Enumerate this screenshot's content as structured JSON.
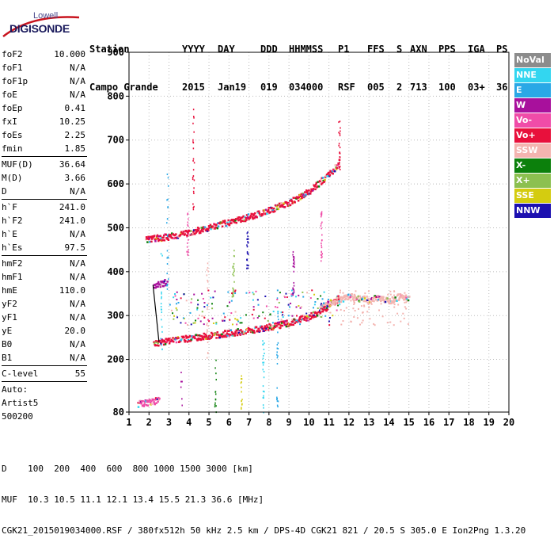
{
  "logo": {
    "top": "Lowell",
    "main": "DIGISONDE"
  },
  "header": {
    "labels": {
      "station": "Station",
      "yyyy": "YYYY",
      "day": "DAY",
      "ddd": "DDD",
      "hhmmss": "HHMMSS",
      "p1": "P1",
      "ffs": "FFS",
      "s": "S",
      "axn": "AXN",
      "pps": "PPS",
      "iga": "IGA",
      "ps": "PS"
    },
    "values": {
      "station": "Campo Grande",
      "yyyy": "2015",
      "day": "Jan19",
      "ddd": "019",
      "hhmmss": "034000",
      "p1": "RSF",
      "ffs": "005",
      "s": "2",
      "axn": "713",
      "pps": "100",
      "iga": "03+",
      "ps": "36"
    }
  },
  "params": {
    "group1": [
      {
        "k": "foF2",
        "v": "10.000"
      },
      {
        "k": "foF1",
        "v": "N/A"
      },
      {
        "k": "foF1p",
        "v": "N/A"
      },
      {
        "k": "foE",
        "v": "N/A"
      },
      {
        "k": "foEp",
        "v": "0.41"
      },
      {
        "k": "fxI",
        "v": "10.25"
      },
      {
        "k": "foEs",
        "v": "2.25"
      },
      {
        "k": "fmin",
        "v": "1.85"
      }
    ],
    "group2": [
      {
        "k": "MUF(D)",
        "v": "36.64"
      },
      {
        "k": "M(D)",
        "v": "3.66"
      },
      {
        "k": "D",
        "v": "N/A"
      }
    ],
    "group3": [
      {
        "k": "h`F",
        "v": "241.0"
      },
      {
        "k": "h`F2",
        "v": "241.0"
      },
      {
        "k": "h`E",
        "v": "N/A"
      },
      {
        "k": "h`Es",
        "v": "97.5"
      }
    ],
    "group4": [
      {
        "k": "hmF2",
        "v": "N/A"
      },
      {
        "k": "hmF1",
        "v": "N/A"
      },
      {
        "k": "hmE",
        "v": "110.0"
      },
      {
        "k": "yF2",
        "v": "N/A"
      },
      {
        "k": "yF1",
        "v": "N/A"
      },
      {
        "k": "yE",
        "v": "20.0"
      },
      {
        "k": "B0",
        "v": "N/A"
      },
      {
        "k": "B1",
        "v": "N/A"
      }
    ],
    "group5": [
      {
        "k": "C-level",
        "v": "55"
      }
    ],
    "auto": [
      "Auto:",
      "Artist5",
      "500200"
    ]
  },
  "legend": [
    {
      "label": "NoVal",
      "color": "#8c8c8c"
    },
    {
      "label": "NNE",
      "color": "#33d6f0"
    },
    {
      "label": "E",
      "color": "#2aa8e6"
    },
    {
      "label": "W",
      "color": "#a8109c"
    },
    {
      "label": "Vo-",
      "color": "#f04ca8"
    },
    {
      "label": "Vo+",
      "color": "#e8103c"
    },
    {
      "label": "SSW",
      "color": "#f4b4b0"
    },
    {
      "label": "X-",
      "color": "#0c800c"
    },
    {
      "label": "X+",
      "color": "#8cc050"
    },
    {
      "label": "SSE",
      "color": "#d4cc10"
    },
    {
      "label": "NNW",
      "color": "#1c10b0"
    }
  ],
  "footer": {
    "line1": "D    100  200  400  600  800 1000 1500 3000 [km]",
    "line2": "MUF  10.3 10.5 11.1 12.1 13.4 15.5 21.3 36.6 [MHz]",
    "line3": "CGK21_2015019034000.RSF / 380fx512h 50 kHz 2.5 km / DPS-4D CGK21 821 / 20.5 S 305.0 E Ion2Png 1.3.20"
  },
  "chart_data": {
    "type": "scatter",
    "xlim": [
      1,
      20
    ],
    "ylim": [
      80,
      900
    ],
    "xticks": [
      1,
      2,
      3,
      4,
      5,
      6,
      7,
      8,
      9,
      10,
      11,
      12,
      13,
      14,
      15,
      16,
      17,
      18,
      19,
      20
    ],
    "yticks": [
      80,
      200,
      300,
      400,
      500,
      600,
      700,
      800,
      900
    ],
    "xlabel": "",
    "ylabel": "",
    "grid": "dotted",
    "traces": [
      {
        "name": "F2 trace",
        "color": "#e8103c",
        "points": [
          [
            2.2,
            238
          ],
          [
            3,
            245
          ],
          [
            4,
            250
          ],
          [
            5,
            256
          ],
          [
            6,
            262
          ],
          [
            7,
            268
          ],
          [
            8,
            276
          ],
          [
            9,
            285
          ],
          [
            10,
            300
          ],
          [
            10.5,
            310
          ],
          [
            11,
            325
          ],
          [
            11.3,
            335
          ],
          [
            11.5,
            345
          ]
        ]
      },
      {
        "name": "F2 second-hop",
        "color": "#e8103c",
        "points": [
          [
            1.8,
            475
          ],
          [
            3,
            482
          ],
          [
            4,
            492
          ],
          [
            5,
            502
          ],
          [
            6,
            515
          ],
          [
            7,
            527
          ],
          [
            8,
            542
          ],
          [
            9,
            560
          ],
          [
            10,
            585
          ],
          [
            10.5,
            605
          ],
          [
            11,
            625
          ],
          [
            11.3,
            640
          ],
          [
            11.5,
            655
          ]
        ]
      },
      {
        "name": "Es trace",
        "color": "#f04ca8",
        "points": [
          [
            1.4,
            100
          ],
          [
            1.8,
            102
          ],
          [
            2.2,
            106
          ],
          [
            2.5,
            112
          ]
        ]
      },
      {
        "name": "oblique upper",
        "color": "#a8109c",
        "points": [
          [
            2.2,
            370
          ],
          [
            2.6,
            375
          ],
          [
            2.9,
            378
          ]
        ]
      },
      {
        "name": "SSW spread",
        "color": "#f4b4b0",
        "points": [
          [
            10.5,
            320
          ],
          [
            11,
            330
          ],
          [
            12,
            345
          ],
          [
            12.5,
            340
          ],
          [
            13,
            338
          ],
          [
            13.5,
            342
          ],
          [
            14,
            335
          ],
          [
            14.5,
            345
          ],
          [
            15,
            340
          ]
        ]
      }
    ]
  }
}
